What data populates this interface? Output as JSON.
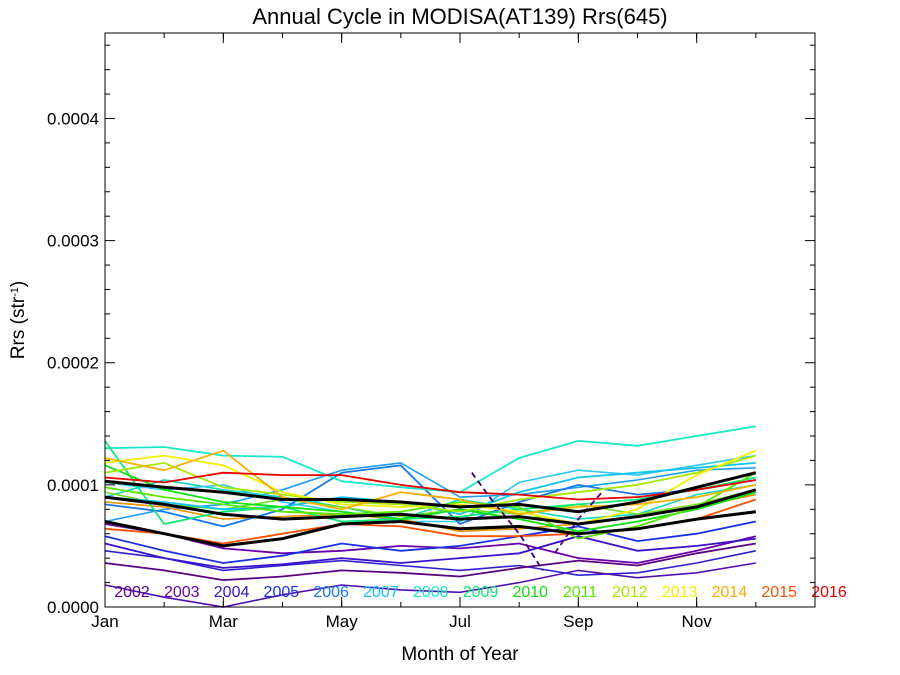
{
  "chart_data": {
    "type": "line",
    "title": "Annual Cycle in MODISA(AT139) Rrs(645)",
    "xlabel": "Month of Year",
    "ylabel_main": "Rrs (str",
    "ylabel_sup": "-1",
    "ylabel_close": ")",
    "xlim": [
      1,
      13
    ],
    "ylim": [
      0,
      0.00047
    ],
    "x_ticks": [
      {
        "value": 1,
        "label": "Jan"
      },
      {
        "value": 3,
        "label": "Mar"
      },
      {
        "value": 5,
        "label": "May"
      },
      {
        "value": 7,
        "label": "Jul"
      },
      {
        "value": 9,
        "label": "Sep"
      },
      {
        "value": 11,
        "label": "Nov"
      }
    ],
    "y_ticks": [
      {
        "value": 0,
        "label": "0.0000"
      },
      {
        "value": 0.0001,
        "label": "0.0001"
      },
      {
        "value": 0.0002,
        "label": "0.0002"
      },
      {
        "value": 0.0003,
        "label": "0.0003"
      },
      {
        "value": 0.0004,
        "label": "0.0004"
      }
    ],
    "x": [
      1,
      2,
      3,
      4,
      5,
      6,
      7,
      8,
      9,
      10,
      11,
      12
    ],
    "legend_placement": "bottom, inside plot",
    "series": [
      {
        "name": "2002",
        "color": "#5a0080",
        "values": [
          3.6e-05,
          3e-05,
          2.2e-05,
          2.5e-05,
          3e-05,
          2.8e-05,
          2.5e-05,
          3.2e-05,
          3.8e-05,
          3.4e-05,
          4.4e-05,
          5.2e-05
        ]
      },
      {
        "name": "2003",
        "color": "#6a00a8",
        "values": [
          6.8e-05,
          6e-05,
          4.8e-05,
          4.4e-05,
          4.6e-05,
          5e-05,
          4.8e-05,
          5.2e-05,
          4e-05,
          3.6e-05,
          4.6e-05,
          5.8e-05
        ]
      },
      {
        "name": "2004",
        "color": "#3a10c8",
        "values": [
          5.2e-05,
          4e-05,
          3.2e-05,
          3.5e-05,
          4e-05,
          3.6e-05,
          4e-05,
          4.4e-05,
          5.8e-05,
          4.6e-05,
          5e-05,
          5.6e-05
        ]
      },
      {
        "name": "2005",
        "color": "#1830e0",
        "values": [
          5.8e-05,
          4.6e-05,
          3.6e-05,
          4.2e-05,
          5.2e-05,
          4.6e-05,
          5e-05,
          5.8e-05,
          6.6e-05,
          5.4e-05,
          6e-05,
          7e-05
        ]
      },
      {
        "name": "2006",
        "color": "#1878e8",
        "values": [
          8.4e-05,
          7.8e-05,
          6.6e-05,
          8e-05,
          0.00011,
          0.000116,
          6.8e-05,
          8.6e-05,
          0.0001,
          9.2e-05,
          9.6e-05,
          0.000104
        ]
      },
      {
        "name": "2007",
        "color": "#10c4f0",
        "values": [
          9e-05,
          8.6e-05,
          8e-05,
          8.2e-05,
          9e-05,
          8.6e-05,
          7.6e-05,
          9.4e-05,
          0.000106,
          0.00011,
          0.000114,
          0.000118
        ]
      },
      {
        "name": "2008",
        "color": "#18e8c8",
        "values": [
          0.00013,
          0.000131,
          0.000124,
          0.000123,
          0.000103,
          9.8e-05,
          9.4e-05,
          0.000122,
          0.000136,
          0.000132,
          0.00014,
          0.000148
        ]
      },
      {
        "name": "2009",
        "color": "#10e878",
        "values": [
          0.000136,
          6.8e-05,
          7.8e-05,
          8.2e-05,
          7e-05,
          7.2e-05,
          7.4e-05,
          8e-05,
          8.4e-05,
          8.8e-05,
          9.6e-05,
          0.000106
        ]
      },
      {
        "name": "2010",
        "color": "#10e010",
        "values": [
          0.000116,
          9.6e-05,
          8.6e-05,
          8.2e-05,
          7.8e-05,
          7.2e-05,
          8e-05,
          7.2e-05,
          6.2e-05,
          7e-05,
          8e-05,
          9.4e-05
        ]
      },
      {
        "name": "2011",
        "color": "#58e800",
        "values": [
          9.8e-05,
          9e-05,
          8.4e-05,
          7.8e-05,
          7.6e-05,
          7.8e-05,
          8.6e-05,
          8.2e-05,
          5.6e-05,
          6.6e-05,
          8.2e-05,
          0.00011
        ]
      },
      {
        "name": "2012",
        "color": "#a8e800",
        "values": [
          0.00011,
          0.000118,
          9.8e-05,
          9.2e-05,
          8.6e-05,
          8.4e-05,
          7.8e-05,
          8.8e-05,
          9.4e-05,
          0.0001,
          0.00011,
          0.000124
        ]
      },
      {
        "name": "2013",
        "color": "#f0f000",
        "values": [
          0.000118,
          0.000124,
          0.000116,
          9.4e-05,
          8.4e-05,
          8.2e-05,
          8.4e-05,
          7.8e-05,
          6.8e-05,
          8e-05,
          0.000108,
          0.000128
        ]
      },
      {
        "name": "2014",
        "color": "#f8b000",
        "values": [
          0.000122,
          0.000112,
          0.000128,
          9e-05,
          8e-05,
          9.4e-05,
          8.8e-05,
          7.6e-05,
          8.2e-05,
          8.4e-05,
          9e-05,
          0.0001
        ]
      },
      {
        "name": "2015",
        "color": "#f85000",
        "values": [
          6.4e-05,
          6e-05,
          5.2e-05,
          6e-05,
          6.8e-05,
          6.6e-05,
          5.8e-05,
          5.8e-05,
          6e-05,
          6.4e-05,
          7.2e-05,
          8.8e-05
        ]
      },
      {
        "name": "2016",
        "color": "#e80000",
        "values": [
          0.000106,
          0.000102,
          0.00011,
          0.000108,
          0.000108,
          0.0001,
          9.4e-05,
          9.2e-05,
          8.8e-05,
          9e-05,
          9.6e-05,
          0.000104
        ]
      }
    ],
    "extra_series": [
      {
        "color": "#1f9ff0",
        "values": [
          7e-05,
          8e-05,
          8.4e-05,
          9.6e-05,
          0.000112,
          0.000118,
          9e-05,
          9.2e-05,
          9.8e-05,
          0.000104,
          0.000112,
          0.000114
        ]
      },
      {
        "color": "#10d8c0",
        "values": [
          9e-05,
          0.000104,
          9.6e-05,
          9e-05,
          8.2e-05,
          7.2e-05,
          8.8e-05,
          8e-05,
          7.2e-05,
          7.6e-05,
          9.2e-05,
          0.0001
        ]
      },
      {
        "color": "#30c8f0",
        "values": [
          0.000102,
          9.6e-05,
          0.0001,
          8.6e-05,
          7.8e-05,
          7e-05,
          7e-05,
          0.000102,
          0.000112,
          0.000108,
          0.000116,
          0.000124
        ]
      },
      {
        "color": "#e89000",
        "values": [
          8.6e-05,
          8.2e-05,
          7.2e-05,
          7.4e-05,
          7.6e-05,
          7.2e-05,
          6.2e-05,
          6.4e-05,
          6.8e-05,
          7.4e-05,
          8.2e-05,
          9.2e-05
        ]
      },
      {
        "color": "#3020d0",
        "values": [
          4.6e-05,
          4e-05,
          3e-05,
          3.4e-05,
          3.8e-05,
          3.4e-05,
          3e-05,
          3.4e-05,
          2.6e-05,
          2.8e-05,
          3.6e-05,
          4.6e-05
        ]
      },
      {
        "color": "#5010b0",
        "values": [
          1.8e-05,
          8e-06,
          0.0,
          1e-05,
          1.8e-05,
          1.4e-05,
          1.2e-05,
          2e-05,
          3e-05,
          2.4e-05,
          2.8e-05,
          3.6e-05
        ]
      },
      {
        "color": "#70e020",
        "values": [
          9.4e-05,
          8.4e-05,
          8e-05,
          8.8e-05,
          8.2e-05,
          7.4e-05,
          8e-05,
          7.6e-05,
          8.4e-05,
          7.6e-05,
          8.4e-05,
          9.6e-05
        ]
      }
    ],
    "climatology_series": [
      {
        "color": "#000000",
        "values": [
          9e-05,
          8.4e-05,
          7.6e-05,
          7.2e-05,
          7.4e-05,
          7.6e-05,
          7.2e-05,
          7.4e-05,
          6.8e-05,
          7.4e-05,
          8.2e-05,
          9.6e-05
        ]
      },
      {
        "color": "#000000",
        "values": [
          0.000103,
          9.8e-05,
          9.4e-05,
          8.8e-05,
          8.8e-05,
          8.6e-05,
          8.2e-05,
          8.4e-05,
          7.8e-05,
          8.6e-05,
          9.8e-05,
          0.00011
        ]
      },
      {
        "color": "#000000",
        "values": [
          7e-05,
          6e-05,
          5e-05,
          5.6e-05,
          6.8e-05,
          7e-05,
          6.4e-05,
          6.6e-05,
          6e-05,
          6.4e-05,
          7.2e-05,
          7.8e-05
        ]
      }
    ],
    "dashed_series": [
      {
        "color": "#400060",
        "points": [
          [
            7.2,
            0.00011
          ],
          [
            7.5,
            9e-05
          ],
          [
            8,
            6e-05
          ],
          [
            8.4,
            3e-05
          ]
        ]
      },
      {
        "color": "#600080",
        "points": [
          [
            8.6,
            4.4e-05
          ],
          [
            9,
            7.2e-05
          ],
          [
            9.4,
            9.4e-05
          ]
        ]
      }
    ]
  }
}
